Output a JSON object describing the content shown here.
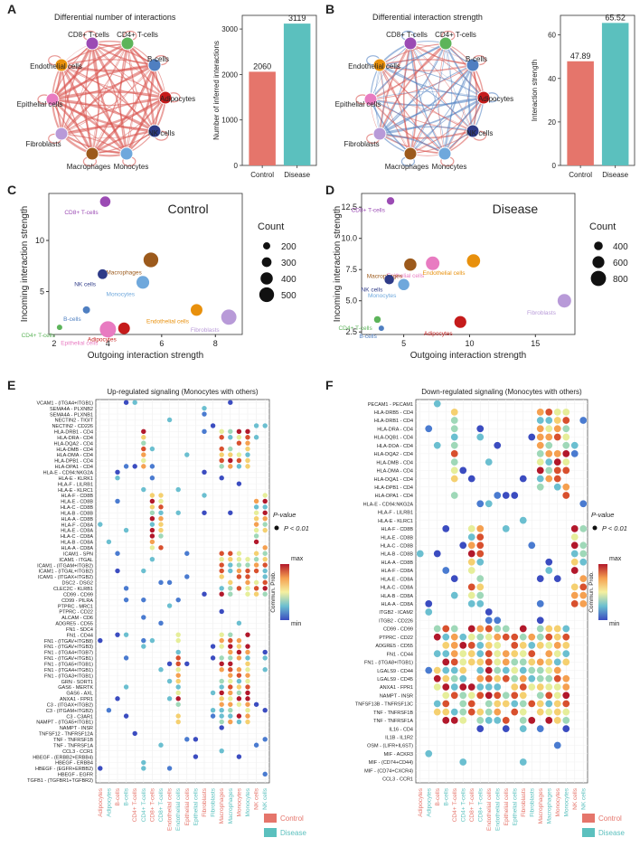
{
  "panels": {
    "a": "A",
    "b": "B",
    "c": "C",
    "d": "D",
    "e": "E",
    "f": "F"
  },
  "colors": {
    "control": "#E5756B",
    "disease": "#5BC0BE",
    "edge_up": "#D9534F",
    "edge_down": "#4F7FC1"
  },
  "cell_types": [
    {
      "name": "CD8+ T-cells",
      "color": "#9B4BB4"
    },
    {
      "name": "CD4+ T-cells",
      "color": "#5DB45A"
    },
    {
      "name": "B-cells",
      "color": "#4F7FC1"
    },
    {
      "name": "Adipocytes",
      "color": "#C51B1B"
    },
    {
      "name": "NK cells",
      "color": "#2E3A87"
    },
    {
      "name": "Monocytes",
      "color": "#6FA8DC"
    },
    {
      "name": "Macrophages",
      "color": "#9C5A1C"
    },
    {
      "name": "Fibroblasts",
      "color": "#B89AD8"
    },
    {
      "name": "Epithelial cells",
      "color": "#E87BC1"
    },
    {
      "name": "Endothelial cells",
      "color": "#E8900C"
    }
  ],
  "chart_data": [
    {
      "id": "A-network",
      "type": "network",
      "title": "Differential number of interactions"
    },
    {
      "id": "A-bar",
      "type": "bar",
      "categories": [
        "Control",
        "Disease"
      ],
      "values": [
        2060,
        3119
      ],
      "ylabel": "Number of inferred interactions",
      "ylim": [
        0,
        3300
      ],
      "yticks": [
        0,
        1000,
        2000,
        3000
      ]
    },
    {
      "id": "B-network",
      "type": "network",
      "title": "Differential interaction strength"
    },
    {
      "id": "B-bar",
      "type": "bar",
      "categories": [
        "Control",
        "Disease"
      ],
      "values": [
        47.89,
        65.52
      ],
      "value_labels": [
        "47.89",
        "65.52"
      ],
      "ylabel": "Interaction strength",
      "ylim": [
        0,
        69
      ],
      "yticks": [
        0,
        20,
        40,
        60
      ]
    },
    {
      "id": "C",
      "type": "scatter",
      "title": "Control",
      "xlabel": "Outgoing interaction strength",
      "ylabel": "Incoming interaction strength",
      "xlim": [
        1.8,
        9.0
      ],
      "ylim": [
        0.8,
        14.6
      ],
      "xticks": [
        2,
        4,
        6,
        8
      ],
      "yticks": [
        5,
        10
      ],
      "points": [
        {
          "label": "CD8+ T-cells",
          "x": 3.9,
          "y": 13.8,
          "count": 330
        },
        {
          "label": "Macrophages",
          "x": 5.6,
          "y": 8.1,
          "count": 500
        },
        {
          "label": "NK cells",
          "x": 3.8,
          "y": 6.7,
          "count": 300
        },
        {
          "label": "Monocytes",
          "x": 5.3,
          "y": 5.9,
          "count": 420
        },
        {
          "label": "B-cells",
          "x": 3.2,
          "y": 3.2,
          "count": 200
        },
        {
          "label": "Endothelial cells",
          "x": 7.3,
          "y": 3.2,
          "count": 380
        },
        {
          "label": "Fibroblasts",
          "x": 8.5,
          "y": 2.5,
          "count": 520
        },
        {
          "label": "CD4+ T-cells",
          "x": 2.2,
          "y": 1.5,
          "count": 130
        },
        {
          "label": "Epithelial cells",
          "x": 4.0,
          "y": 1.3,
          "count": 560
        },
        {
          "label": "Adipocytes",
          "x": 4.6,
          "y": 1.4,
          "count": 380
        }
      ],
      "legend": {
        "title": "Count",
        "sizes": [
          200,
          300,
          400,
          500
        ]
      }
    },
    {
      "id": "D",
      "type": "scatter",
      "title": "Disease",
      "xlabel": "Outgoing interaction strength",
      "ylabel": "Incoming interaction strength",
      "xlim": [
        1.8,
        18.0
      ],
      "ylim": [
        2.3,
        13.6
      ],
      "xticks": [
        5,
        10,
        15
      ],
      "yticks": [
        2.5,
        5.0,
        7.5,
        10.0,
        12.5
      ],
      "points": [
        {
          "label": "CD8+ T-cells",
          "x": 4.0,
          "y": 13.0,
          "count": 330
        },
        {
          "label": "Epithelial cells",
          "x": 7.2,
          "y": 8.0,
          "count": 700
        },
        {
          "label": "Macrophages",
          "x": 5.5,
          "y": 7.9,
          "count": 620
        },
        {
          "label": "Endothelial cells",
          "x": 10.3,
          "y": 8.2,
          "count": 680
        },
        {
          "label": "NK cells",
          "x": 3.9,
          "y": 6.7,
          "count": 450
        },
        {
          "label": "Monocytes",
          "x": 5.0,
          "y": 6.3,
          "count": 560
        },
        {
          "label": "Fibroblasts",
          "x": 17.2,
          "y": 5.0,
          "count": 700
        },
        {
          "label": "CD4+ T-cells",
          "x": 3.0,
          "y": 3.5,
          "count": 280
        },
        {
          "label": "B-cells",
          "x": 3.3,
          "y": 2.8,
          "count": 200
        },
        {
          "label": "Adipocytes",
          "x": 9.3,
          "y": 3.3,
          "count": 600
        }
      ],
      "legend": {
        "title": "Count",
        "sizes": [
          400,
          600,
          800
        ]
      }
    },
    {
      "id": "E",
      "type": "dotplot",
      "title": "Up-regulated signaling (Monocytes with others)",
      "rows": [
        "VCAM1 - (ITGA4+ITGB1)",
        "SEMA4A - PLXNB2",
        "SEMA4A - PLXNB1",
        "NECTIN2 - TIGIT",
        "NECTIN2 - CD226",
        "HLA-DRB1 - CD4",
        "HLA-DRA - CD4",
        "HLA-DQA2 - CD4",
        "HLA-DMB - CD4",
        "HLA-DMA - CD4",
        "HLA-DPB1 - CD4",
        "HLA-DPA1 - CD4",
        "HLA-E - CD94:NKG2A",
        "HLA-E - KLRK1",
        "HLA-F - LILRB1",
        "HLA-E - KLRC1",
        "HLA-F - CD8B",
        "HLA-E - CD8B",
        "HLA-C - CD8B",
        "HLA-B - CD8B",
        "HLA-A - CD8B",
        "HLA-F - CD8A",
        "HLA-E - CD8A",
        "HLA-C - CD8A",
        "HLA-B - CD8A",
        "HLA-A - CD8A",
        "ICAM1 - SPN",
        "ICAM1 - ITGAL",
        "ICAM1 - (ITGAM+ITGB2)",
        "ICAM1 - (ITGAL+ITGB2)",
        "ICAM1 - (ITGAX+ITGB2)",
        "DSC2 - DSG2",
        "CLEC2C - KLRB1",
        "CD99 - CD99",
        "CD99 - PILRA",
        "PTPRC - MRC1",
        "PTPRC - CD22",
        "ALCAM - CD6",
        "ADGRE5 - CD55",
        "FN1 - SDC4",
        "FN1 - CD44",
        "FN1 - (ITGAV+ITGB8)",
        "FN1 - (ITGAV+ITGB3)",
        "FN1 - (ITGA4+ITGB7)",
        "FN1 - (ITGAV+ITGB1)",
        "FN1 - (ITGA5+ITGB1)",
        "FN1 - (ITGA4+ITGB1)",
        "FN1 - (ITGA3+ITGB1)",
        "GRN - SORT1",
        "GAS6 - MERTK",
        "GAS6 - AXL",
        "ANXA1 - FPR1",
        "C3 - (ITGAX+ITGB2)",
        "C3 - (ITGAM+ITGB2)",
        "C3 - C3AR1",
        "NAMPT - (ITGA5+ITGB1)",
        "NAMPT - INSR",
        "TNFSF12 - TNFRSF12A",
        "TNF - TNFRSF1B",
        "TNF - TNFRSF1A",
        "CCL3 - CCR1",
        "HBEGF - (ERBB2+ERBB4)",
        "HBEGF - ERBB4",
        "HBEGF - (EGFR+ERBB2)",
        "HBEGF - EGFR",
        "TGFB1 - (TGFBR1+TGFBR2)"
      ],
      "columns": [
        "Adipocytes",
        "Adipocytes",
        "B-cells",
        "B-cells",
        "CD4+ T-cells",
        "CD4+ T-cells",
        "CD8+ T-cells",
        "CD8+ T-cells",
        "Endothelial cells",
        "Endothelial cells",
        "Epithelial cells",
        "Epithelial cells",
        "Fibroblasts",
        "Fibroblasts",
        "Macrophages",
        "Macrophages",
        "Monocytes",
        "Monocytes",
        "NK cells",
        "NK cells"
      ],
      "legend": {
        "pvalue_title": "P-value",
        "pvalue_label": "P < 0.01",
        "color_title": "Commun. Prob.",
        "max": "max",
        "min": "min",
        "groups": [
          "Control",
          "Disease"
        ]
      }
    },
    {
      "id": "F",
      "type": "dotplot",
      "title": "Down-regulated signaling (Monocytes with others)",
      "rows": [
        "PECAM1 - PECAM1",
        "HLA-DRB5 - CD4",
        "HLA-DRB1 - CD4",
        "HLA-DRA - CD4",
        "HLA-DQB1 - CD4",
        "HLA-DOA - CD4",
        "HLA-DQA2 - CD4",
        "HLA-DMB - CD4",
        "HLA-DMA - CD4",
        "HLA-DQA1 - CD4",
        "HLA-DPB1 - CD4",
        "HLA-DPA1 - CD4",
        "HLA-E - CD94:NKG2A",
        "HLA-F - LILRB1",
        "HLA-E - KLRC1",
        "HLA-F - CD8B",
        "HLA-E - CD8B",
        "HLA-C - CD8B",
        "HLA-B - CD8B",
        "HLA-A - CD8B",
        "HLA-F - CD8A",
        "HLA-E - CD8A",
        "HLA-C - CD8A",
        "HLA-B - CD8A",
        "HLA-A - CD8A",
        "ITGB2 - ICAM2",
        "ITGB2 - CD226",
        "CD99 - CD99",
        "PTPRC - CD22",
        "ADGRE5 - CD55",
        "FN1 - CD44",
        "FN1 - (ITGA8+ITGB1)",
        "LGALS9 - CD44",
        "LGALS9 - CD45",
        "ANXA1 - FPR1",
        "NAMPT - INSR",
        "TNFSF13B - TNFRSF13C",
        "TNF - TNFRSF1B",
        "TNF - TNFRSF1A",
        "IL16 - CD4",
        "IL1B - IL1R2",
        "OSM - (LIFR+IL6ST)",
        "MIF - ACKR3",
        "MIF - (CD74+CD44)",
        "MIF - (CD74+CXCR4)",
        "CCL3 - CCR1"
      ],
      "columns": [
        "Adipocytes",
        "Adipocytes",
        "B-cells",
        "B-cells",
        "CD4+ T-cells",
        "CD4+ T-cells",
        "CD8+ T-cells",
        "CD8+ T-cells",
        "Endothelial cells",
        "Endothelial cells",
        "Epithelial cells",
        "Epithelial cells",
        "Fibroblasts",
        "Fibroblasts",
        "Macrophages",
        "Macrophages",
        "Monocytes",
        "Monocytes",
        "NK cells",
        "NK cells"
      ],
      "legend": {
        "pvalue_title": "P-value",
        "pvalue_label": "P < 0.01",
        "color_title": "Commun. Prob.",
        "max": "max",
        "min": "min",
        "groups": [
          "Control",
          "Disease"
        ]
      }
    }
  ]
}
